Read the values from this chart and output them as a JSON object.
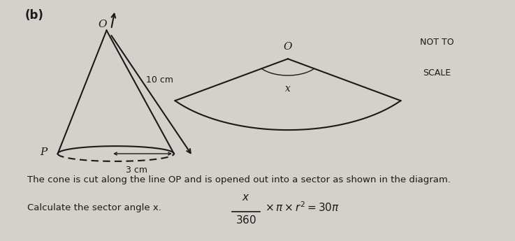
{
  "bg_color": "#d4d0ca",
  "title_b": "(b)",
  "cone_slant": "10 cm",
  "cone_radius_label": "3 cm",
  "cone_P_label": "P",
  "cone_O_label": "O",
  "sector_O_label": "O",
  "sector_x_label": "x",
  "not_to_scale_line1": "NOT TO",
  "not_to_scale_line2": "SCALE",
  "text_line1": "The cone is cut along the line OP and is opened out into a sector as shown in the diagram.",
  "text_line2": "Calculate the sector angle x.",
  "font_size_main": 10,
  "line_color": "#1a1a1a"
}
